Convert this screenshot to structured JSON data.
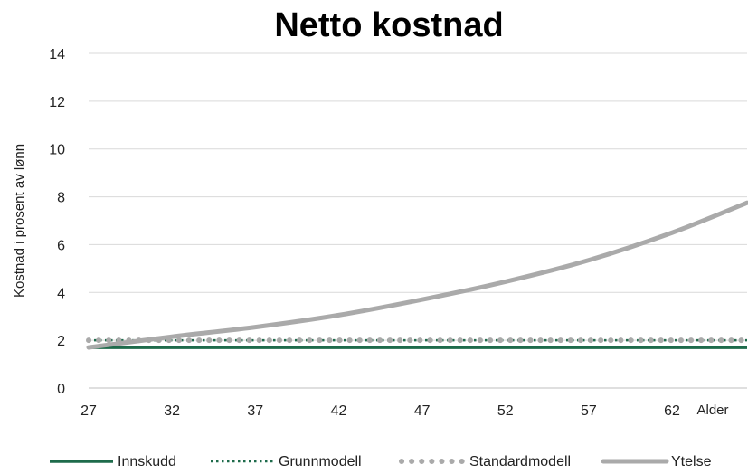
{
  "chart_data": {
    "type": "line",
    "title": "Netto kostnad",
    "xlabel": "Alder",
    "ylabel": "Kostnad i prosent av lønn",
    "xlim": [
      27,
      66.5
    ],
    "ylim": [
      0,
      14
    ],
    "x_ticks": [
      27,
      32,
      37,
      42,
      47,
      52,
      57,
      62
    ],
    "y_ticks": [
      0,
      2,
      4,
      6,
      8,
      10,
      12,
      14
    ],
    "grid": "horizontal",
    "legend_position": "bottom",
    "series": [
      {
        "name": "Innskudd",
        "color": "#1e6b4b",
        "style": "solid",
        "x": [
          27,
          66.5
        ],
        "y": [
          1.7,
          1.7
        ]
      },
      {
        "name": "Grunnmodell",
        "color": "#1e6b4b",
        "style": "dotted",
        "x": [
          27,
          66.5
        ],
        "y": [
          2.0,
          2.0
        ]
      },
      {
        "name": "Standardmodell",
        "color": "#aaaaaa",
        "style": "round-dot",
        "x": [
          27,
          66.5
        ],
        "y": [
          2.0,
          2.0
        ]
      },
      {
        "name": "Ytelse",
        "color": "#aaaaaa",
        "style": "thick",
        "x": [
          27,
          32,
          37,
          42,
          47,
          52,
          57,
          62,
          66.5
        ],
        "y": [
          1.7,
          2.15,
          2.55,
          3.05,
          3.7,
          4.45,
          5.35,
          6.5,
          7.75
        ]
      }
    ]
  }
}
